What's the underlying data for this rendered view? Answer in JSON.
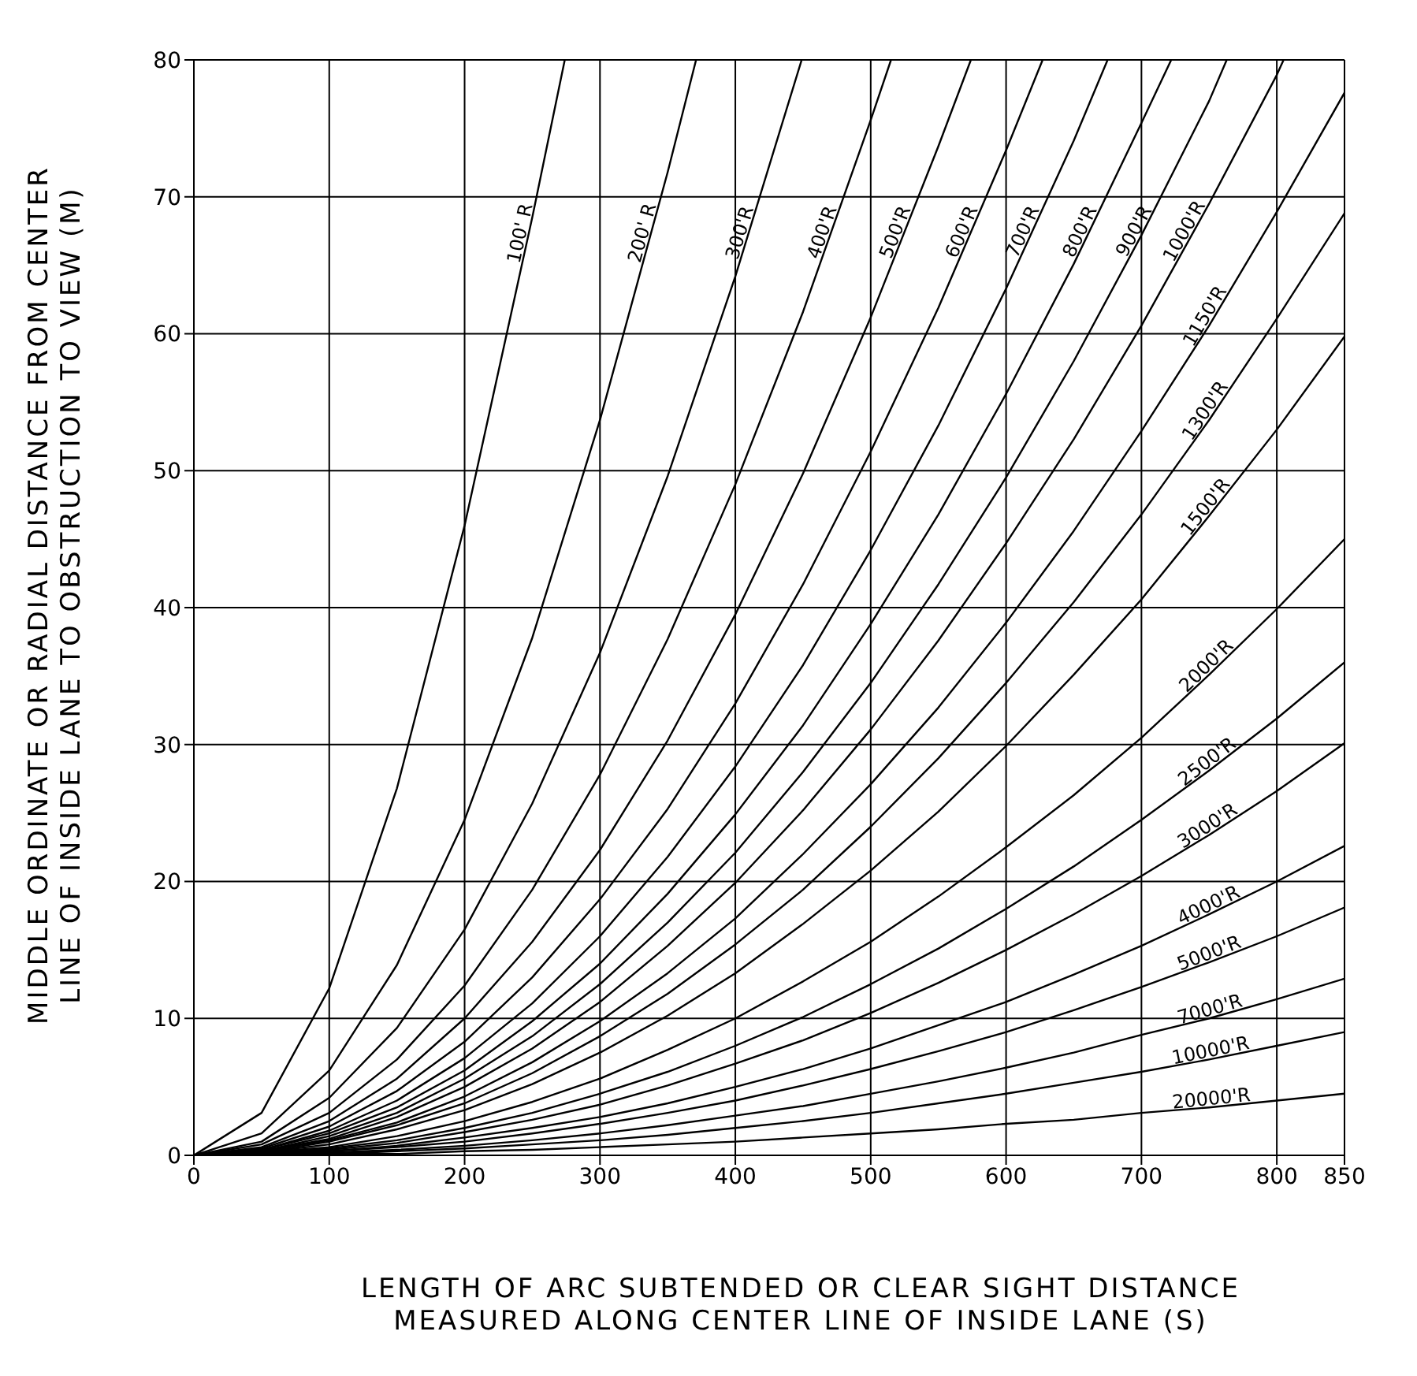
{
  "chart_data": {
    "type": "line",
    "xlabel": "LENGTH OF ARC SUBTENDED OR CLEAR SIGHT DISTANCE\nMEASURED ALONG CENTER LINE OF INSIDE LANE (S)",
    "ylabel": "MIDDLE ORDINATE OR RADIAL DISTANCE FROM CENTER\nLINE OF INSIDE LANE TO OBSTRUCTION TO VIEW (M)",
    "xlim": [
      0,
      850
    ],
    "xticks": [
      0,
      100,
      200,
      300,
      400,
      500,
      600,
      700,
      800,
      850
    ],
    "ylim": [
      0,
      80
    ],
    "yticks": [
      0,
      10,
      20,
      30,
      40,
      50,
      60,
      70,
      80
    ],
    "grid": true,
    "line_style": "solid",
    "series": [
      {
        "name": "100' R",
        "color": "#000000",
        "x": [
          0,
          50,
          100,
          150,
          200,
          250,
          274
        ],
        "values": [
          0,
          3.1,
          12.2,
          26.8,
          46.0,
          68.5,
          80
        ]
      },
      {
        "name": "200' R",
        "color": "#000000",
        "x": [
          0,
          50,
          100,
          150,
          200,
          250,
          300,
          350,
          371
        ],
        "values": [
          0,
          1.6,
          6.2,
          13.9,
          24.5,
          37.8,
          53.7,
          71.8,
          80
        ]
      },
      {
        "name": "300'R",
        "color": "#000000",
        "x": [
          0,
          50,
          100,
          150,
          200,
          250,
          300,
          350,
          400,
          449
        ],
        "values": [
          0,
          1.0,
          4.2,
          9.3,
          16.5,
          25.7,
          36.7,
          49.6,
          64.2,
          80
        ]
      },
      {
        "name": "400'R",
        "color": "#000000",
        "x": [
          0,
          50,
          100,
          150,
          200,
          250,
          300,
          350,
          400,
          450,
          500,
          515
        ],
        "values": [
          0,
          0.8,
          3.1,
          7.0,
          12.4,
          19.4,
          27.8,
          37.7,
          49.0,
          61.6,
          75.6,
          80
        ]
      },
      {
        "name": "500'R",
        "color": "#000000",
        "x": [
          0,
          50,
          100,
          150,
          200,
          250,
          300,
          350,
          400,
          450,
          500,
          550,
          574
        ],
        "values": [
          0,
          0.6,
          2.5,
          5.6,
          10.0,
          15.6,
          22.3,
          30.3,
          39.5,
          49.8,
          61.2,
          73.7,
          80
        ]
      },
      {
        "name": "600'R",
        "color": "#000000",
        "x": [
          0,
          50,
          100,
          150,
          200,
          250,
          300,
          350,
          400,
          450,
          500,
          550,
          600,
          627
        ],
        "values": [
          0,
          0.5,
          2.1,
          4.7,
          8.3,
          13.0,
          18.7,
          25.3,
          33.0,
          41.7,
          51.4,
          61.9,
          73.4,
          80
        ]
      },
      {
        "name": "700'R",
        "color": "#000000",
        "x": [
          0,
          50,
          100,
          150,
          200,
          250,
          300,
          350,
          400,
          450,
          500,
          550,
          600,
          650,
          675
        ],
        "values": [
          0,
          0.4,
          1.8,
          4.0,
          7.1,
          11.1,
          16.0,
          21.8,
          28.4,
          35.8,
          44.2,
          53.3,
          63.3,
          74.1,
          80
        ]
      },
      {
        "name": "800'R",
        "color": "#000000",
        "x": [
          0,
          50,
          100,
          150,
          200,
          250,
          300,
          350,
          400,
          450,
          500,
          550,
          600,
          650,
          700,
          722
        ],
        "values": [
          0,
          0.4,
          1.6,
          3.5,
          6.2,
          9.8,
          14.0,
          19.1,
          24.9,
          31.4,
          38.8,
          46.8,
          55.6,
          65.1,
          75.4,
          80
        ]
      },
      {
        "name": "900'R",
        "color": "#000000",
        "x": [
          0,
          50,
          100,
          150,
          200,
          250,
          300,
          350,
          400,
          450,
          500,
          550,
          600,
          650,
          700,
          750,
          763
        ],
        "values": [
          0,
          0.3,
          1.4,
          3.1,
          5.6,
          8.7,
          12.5,
          17.0,
          22.1,
          28.0,
          34.5,
          41.7,
          49.5,
          58.0,
          67.2,
          77.0,
          80
        ]
      },
      {
        "name": "1000'R",
        "color": "#000000",
        "x": [
          0,
          50,
          100,
          150,
          200,
          250,
          300,
          350,
          400,
          450,
          500,
          550,
          600,
          650,
          700,
          750,
          800,
          805
        ],
        "values": [
          0,
          0.3,
          1.2,
          2.8,
          5.0,
          7.8,
          11.2,
          15.3,
          19.9,
          25.2,
          31.1,
          37.6,
          44.7,
          52.3,
          60.6,
          69.5,
          78.9,
          80
        ]
      },
      {
        "name": "1150'R",
        "color": "#000000",
        "values": [
          0,
          0.3,
          1.1,
          2.4,
          4.3,
          6.8,
          9.8,
          13.3,
          17.3,
          22.0,
          27.1,
          32.7,
          38.9,
          45.6,
          52.9,
          60.6,
          68.9,
          77.6
        ]
      },
      {
        "name": "1300'R",
        "color": "#000000",
        "values": [
          0,
          0.2,
          1.0,
          2.2,
          3.8,
          6.0,
          8.7,
          11.8,
          15.4,
          19.4,
          24.0,
          29.0,
          34.5,
          40.4,
          46.8,
          53.7,
          61.1,
          68.8
        ]
      },
      {
        "name": "1500'R",
        "color": "#000000",
        "values": [
          0,
          0.2,
          0.8,
          1.9,
          3.3,
          5.2,
          7.5,
          10.2,
          13.3,
          16.9,
          20.8,
          25.1,
          29.9,
          35.1,
          40.6,
          46.7,
          53.0,
          59.8
        ]
      },
      {
        "name": "2000'R",
        "color": "#000000",
        "values": [
          0,
          0.2,
          0.6,
          1.4,
          2.5,
          3.9,
          5.6,
          7.7,
          10.0,
          12.7,
          15.6,
          18.9,
          22.5,
          26.3,
          30.5,
          35.1,
          39.9,
          45.0
        ]
      },
      {
        "name": "2500'R",
        "color": "#000000",
        "values": [
          0,
          0.1,
          0.5,
          1.1,
          2.0,
          3.1,
          4.5,
          6.1,
          8.0,
          10.1,
          12.5,
          15.1,
          18.0,
          21.1,
          24.5,
          28.1,
          31.9,
          36.0
        ]
      },
      {
        "name": "3000'R",
        "color": "#000000",
        "values": [
          0,
          0.1,
          0.4,
          0.9,
          1.7,
          2.6,
          3.7,
          5.1,
          6.7,
          8.4,
          10.4,
          12.6,
          15.0,
          17.6,
          20.4,
          23.4,
          26.6,
          30.1
        ]
      },
      {
        "name": "4000'R",
        "color": "#000000",
        "values": [
          0,
          0.1,
          0.3,
          0.7,
          1.3,
          2.0,
          2.8,
          3.8,
          5.0,
          6.3,
          7.8,
          9.5,
          11.2,
          13.2,
          15.3,
          17.6,
          20.0,
          22.6
        ]
      },
      {
        "name": "5000'R",
        "color": "#000000",
        "values": [
          0,
          0.1,
          0.3,
          0.6,
          1.0,
          1.6,
          2.3,
          3.1,
          4.0,
          5.1,
          6.3,
          7.6,
          9.0,
          10.6,
          12.3,
          14.1,
          16.0,
          18.1
        ]
      },
      {
        "name": "7000'R",
        "color": "#000000",
        "values": [
          0,
          0.0,
          0.2,
          0.4,
          0.7,
          1.1,
          1.6,
          2.2,
          2.9,
          3.6,
          4.5,
          5.4,
          6.4,
          7.5,
          8.8,
          10.0,
          11.4,
          12.9
        ]
      },
      {
        "name": "10000'R",
        "color": "#000000",
        "values": [
          0,
          0.0,
          0.1,
          0.3,
          0.5,
          0.8,
          1.1,
          1.5,
          2.0,
          2.5,
          3.1,
          3.8,
          4.5,
          5.3,
          6.1,
          7.0,
          8.0,
          9.0
        ]
      },
      {
        "name": "20000'R",
        "color": "#000000",
        "values": [
          0,
          0.0,
          0.1,
          0.1,
          0.3,
          0.4,
          0.6,
          0.8,
          1.0,
          1.3,
          1.6,
          1.9,
          2.3,
          2.6,
          3.1,
          3.5,
          4.0,
          4.5
        ]
      }
    ],
    "x": [
      0,
      50,
      100,
      150,
      200,
      250,
      300,
      350,
      400,
      450,
      500,
      550,
      600,
      650,
      700,
      750,
      800,
      850
    ]
  }
}
